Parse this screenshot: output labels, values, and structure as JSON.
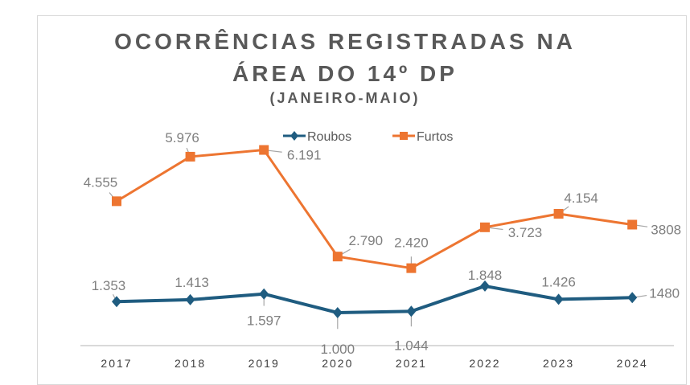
{
  "chart_data": {
    "type": "line",
    "title": "OCORRÊNCIAS REGISTRADAS NA",
    "title_line2": "ÁREA DO 14º DP",
    "subtitle": "(JANEIRO-MAIO)",
    "categories": [
      "2017",
      "2018",
      "2019",
      "2020",
      "2021",
      "2022",
      "2023",
      "2024"
    ],
    "series": [
      {
        "name": "Roubos",
        "color": "#1f5c80",
        "marker": "diamond",
        "values": [
          1353,
          1413,
          1597,
          1000,
          1044,
          1848,
          1426,
          1480
        ],
        "labels": [
          "1.353",
          "1.413",
          "1.597",
          "1.000",
          "1.044",
          "1.848",
          "1.426",
          "1480"
        ]
      },
      {
        "name": "Furtos",
        "color": "#ed7531",
        "marker": "square",
        "values": [
          4555,
          5976,
          6191,
          2790,
          2420,
          3723,
          4154,
          3808
        ],
        "labels": [
          "4.555",
          "5.976",
          "6.191",
          "2.790",
          "2.420",
          "3.723",
          "4.154",
          "3808"
        ]
      }
    ],
    "xlabel": "",
    "ylabel": "",
    "ylim": [
      0,
      10000
    ],
    "grid": false,
    "legend": "top"
  }
}
